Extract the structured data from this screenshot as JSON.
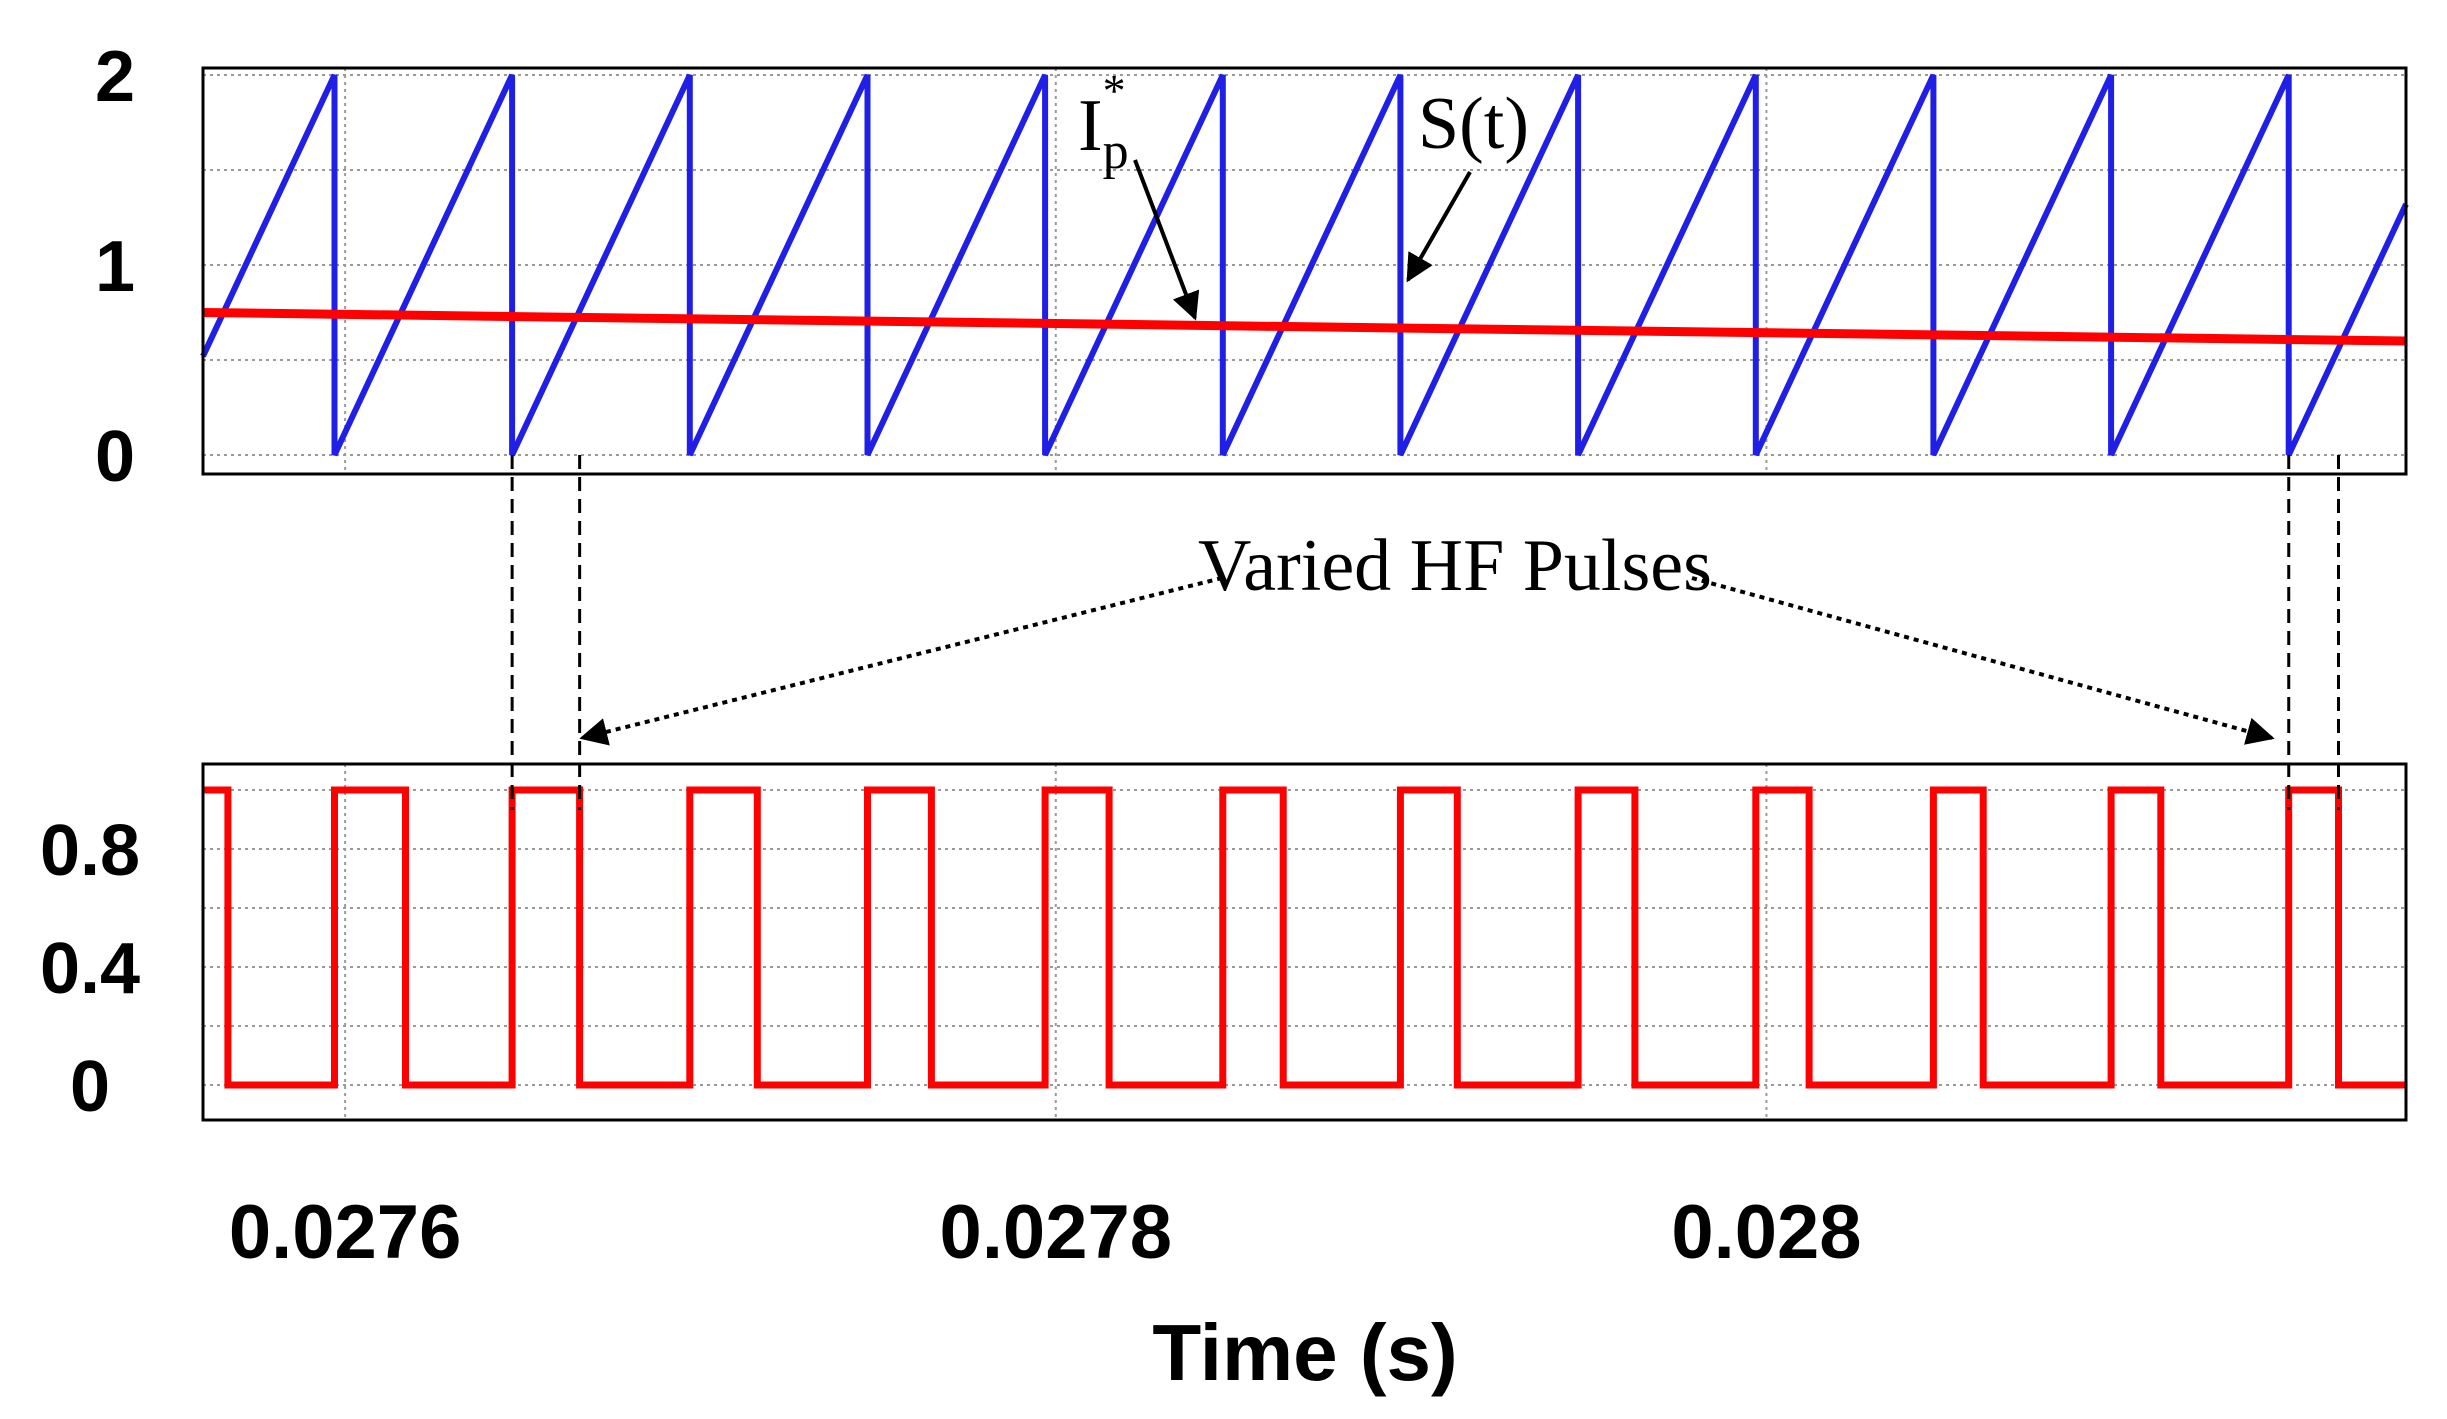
{
  "chart_data": [
    {
      "type": "line",
      "xlim": [
        0.02756,
        0.02818
      ],
      "ylim": [
        -0.1,
        2.05
      ],
      "yticks": [
        "0",
        "1",
        "2"
      ],
      "grid": true,
      "sawtooth": {
        "period": 5e-05,
        "troughs": [
          0.027597,
          0.027647,
          0.027697,
          0.027747,
          0.027797,
          0.027847,
          0.027897,
          0.027947,
          0.027997,
          0.028047,
          0.028097,
          0.028147
        ],
        "min": 0,
        "max": 2,
        "color": "#1f1fe6"
      },
      "reference": {
        "x": [
          0.02756,
          0.02818
        ],
        "y": [
          0.75,
          0.6
        ],
        "color": "#ff0000"
      },
      "annotations": {
        "ip_main": "I",
        "ip_sub": "p",
        "ip_sup": "*",
        "s_label": "S(t)"
      }
    },
    {
      "type": "line",
      "xlim": [
        0.02756,
        0.02818
      ],
      "ylim": [
        -0.1,
        1.05
      ],
      "yticks": [
        "0",
        "0.4",
        "0.8"
      ],
      "xticks": [
        "0.0276",
        "0.0278",
        "0.028"
      ],
      "xlabel": "Time (s)",
      "grid": true,
      "pulses": {
        "high": 1,
        "low": 0,
        "color": "#ff0000",
        "edges": [
          [
            0.02756,
            0.027567
          ],
          [
            0.027597,
            0.027617
          ],
          [
            0.027647,
            0.027666
          ],
          [
            0.027697,
            0.027716
          ],
          [
            0.027747,
            0.027765
          ],
          [
            0.027797,
            0.027815
          ],
          [
            0.027847,
            0.027864
          ],
          [
            0.027897,
            0.027913
          ],
          [
            0.027947,
            0.027963
          ],
          [
            0.027997,
            0.028012
          ],
          [
            0.028047,
            0.028061
          ],
          [
            0.028097,
            0.028111
          ],
          [
            0.028147,
            0.028161
          ]
        ]
      },
      "annotation": "Varied HF Pulses"
    }
  ]
}
